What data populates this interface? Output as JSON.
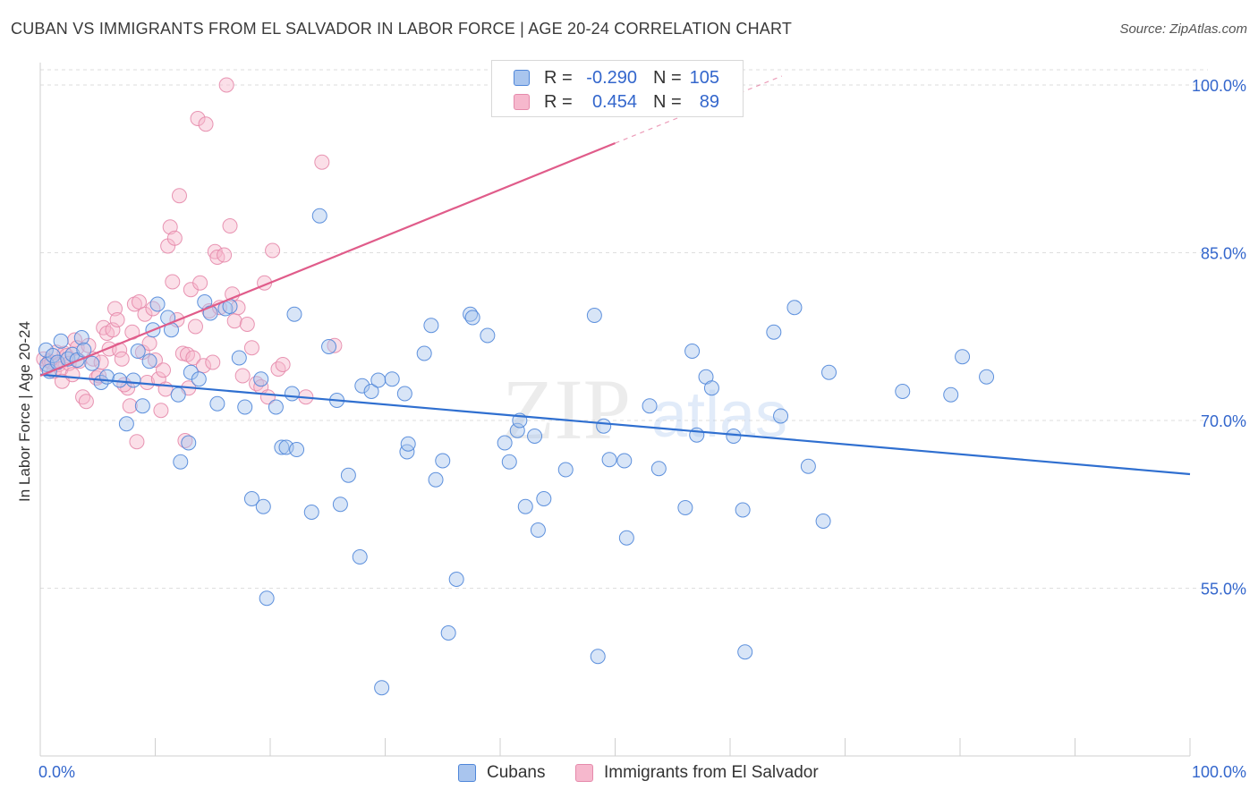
{
  "title": "CUBAN VS IMMIGRANTS FROM EL SALVADOR IN LABOR FORCE | AGE 20-24 CORRELATION CHART",
  "source": "Source: ZipAtlas.com",
  "watermark": {
    "zip": "ZIP",
    "atlas": "atlas"
  },
  "colors": {
    "cubans_fill": "#a9c5ee",
    "cubans_stroke": "#4f86d9",
    "cubans_line": "#2f6fd0",
    "salvador_fill": "#f6b8cd",
    "salvador_stroke": "#e58aab",
    "salvador_line": "#e05c8a",
    "value_text": "#3366cc",
    "grid": "#dedede"
  },
  "legend_top": [
    {
      "r_label": "R =",
      "r_value": "-0.290",
      "n_label": "N =",
      "n_value": "105"
    },
    {
      "r_label": "R =",
      "r_value": "0.454",
      "n_label": "N =",
      "n_value": "89"
    }
  ],
  "chart_data": {
    "type": "scatter",
    "title": "CUBAN VS IMMIGRANTS FROM EL SALVADOR IN LABOR FORCE | AGE 20-24 CORRELATION CHART",
    "xlabel": "",
    "ylabel": "In Labor Force | Age 20-24",
    "xlim": [
      0,
      100
    ],
    "ylim": [
      40,
      102
    ],
    "x_tick_labels": [
      "0.0%",
      "100.0%"
    ],
    "y_ticks": [
      55,
      70,
      85,
      100
    ],
    "y_tick_labels": [
      "55.0%",
      "70.0%",
      "85.0%",
      "100.0%"
    ],
    "grid": true,
    "legend_position": "top-center",
    "series": [
      {
        "name": "Cubans",
        "r": -0.29,
        "n": 105,
        "trend": {
          "x0": 0,
          "y0": 74.1,
          "x1": 100,
          "y1": 65.2
        },
        "points": [
          [
            0.5,
            76.3
          ],
          [
            0.6,
            75.0
          ],
          [
            0.8,
            74.4
          ],
          [
            1.1,
            75.8
          ],
          [
            1.5,
            75.2
          ],
          [
            1.8,
            77.1
          ],
          [
            2.4,
            75.5
          ],
          [
            2.8,
            75.9
          ],
          [
            3.2,
            75.4
          ],
          [
            3.6,
            77.4
          ],
          [
            3.8,
            76.3
          ],
          [
            4.5,
            75.1
          ],
          [
            5.3,
            73.4
          ],
          [
            5.8,
            73.9
          ],
          [
            6.9,
            73.6
          ],
          [
            7.5,
            69.7
          ],
          [
            8.1,
            73.6
          ],
          [
            8.5,
            76.2
          ],
          [
            8.9,
            71.3
          ],
          [
            9.5,
            75.3
          ],
          [
            9.8,
            78.1
          ],
          [
            10.2,
            80.4
          ],
          [
            11.1,
            79.2
          ],
          [
            11.4,
            78.1
          ],
          [
            12.0,
            72.3
          ],
          [
            12.2,
            66.3
          ],
          [
            12.9,
            68.0
          ],
          [
            13.1,
            74.3
          ],
          [
            13.8,
            73.7
          ],
          [
            14.3,
            80.6
          ],
          [
            14.8,
            79.6
          ],
          [
            15.4,
            71.5
          ],
          [
            16.1,
            80.0
          ],
          [
            16.5,
            80.2
          ],
          [
            17.3,
            75.6
          ],
          [
            17.8,
            71.2
          ],
          [
            18.4,
            63.0
          ],
          [
            19.2,
            73.7
          ],
          [
            19.4,
            62.3
          ],
          [
            19.7,
            54.1
          ],
          [
            20.5,
            71.2
          ],
          [
            21.0,
            67.6
          ],
          [
            21.4,
            67.6
          ],
          [
            21.9,
            72.4
          ],
          [
            22.1,
            79.5
          ],
          [
            23.6,
            61.8
          ],
          [
            24.3,
            88.3
          ],
          [
            25.1,
            76.6
          ],
          [
            25.8,
            71.8
          ],
          [
            26.1,
            62.5
          ],
          [
            26.8,
            65.1
          ],
          [
            27.8,
            57.8
          ],
          [
            28.0,
            73.1
          ],
          [
            28.8,
            72.6
          ],
          [
            29.4,
            73.6
          ],
          [
            29.7,
            46.1
          ],
          [
            30.6,
            73.7
          ],
          [
            31.7,
            72.4
          ],
          [
            31.9,
            67.2
          ],
          [
            32.0,
            67.9
          ],
          [
            33.4,
            76.0
          ],
          [
            34.0,
            78.5
          ],
          [
            34.4,
            64.7
          ],
          [
            35.0,
            66.4
          ],
          [
            35.5,
            51.0
          ],
          [
            36.2,
            55.8
          ],
          [
            37.4,
            79.5
          ],
          [
            37.6,
            79.2
          ],
          [
            38.9,
            77.6
          ],
          [
            40.4,
            68.0
          ],
          [
            40.8,
            66.3
          ],
          [
            41.5,
            69.1
          ],
          [
            41.7,
            70.0
          ],
          [
            42.2,
            62.3
          ],
          [
            43.0,
            68.6
          ],
          [
            43.3,
            60.2
          ],
          [
            43.8,
            63.0
          ],
          [
            45.7,
            65.6
          ],
          [
            48.2,
            79.4
          ],
          [
            48.5,
            48.9
          ],
          [
            49.0,
            69.5
          ],
          [
            49.5,
            66.5
          ],
          [
            50.8,
            66.4
          ],
          [
            51.0,
            59.5
          ],
          [
            53.0,
            71.3
          ],
          [
            53.8,
            65.7
          ],
          [
            56.1,
            62.2
          ],
          [
            56.7,
            76.2
          ],
          [
            57.1,
            68.7
          ],
          [
            57.9,
            73.9
          ],
          [
            58.4,
            72.9
          ],
          [
            60.3,
            68.6
          ],
          [
            61.1,
            62.0
          ],
          [
            61.3,
            49.3
          ],
          [
            63.8,
            77.9
          ],
          [
            64.4,
            70.4
          ],
          [
            65.6,
            80.1
          ],
          [
            66.8,
            65.9
          ],
          [
            68.1,
            61.0
          ],
          [
            68.6,
            74.3
          ],
          [
            75.0,
            72.6
          ],
          [
            79.2,
            72.3
          ],
          [
            80.2,
            75.7
          ],
          [
            82.3,
            73.9
          ],
          [
            22.3,
            67.4
          ]
        ]
      },
      {
        "name": "Immigrants from El Salvador",
        "r": 0.454,
        "n": 89,
        "trend": {
          "x0": 0,
          "y0": 74.0,
          "x1": 50,
          "y1": 94.8
        },
        "trend_extension": {
          "x0": 50,
          "y0": 94.8,
          "x1": 64.5,
          "y1": 100.8
        },
        "points": [
          [
            0.3,
            75.5
          ],
          [
            0.6,
            74.8
          ],
          [
            0.8,
            75.3
          ],
          [
            1.0,
            75.2
          ],
          [
            1.2,
            74.4
          ],
          [
            1.4,
            76.1
          ],
          [
            1.6,
            75.0
          ],
          [
            1.8,
            74.6
          ],
          [
            1.9,
            73.5
          ],
          [
            2.1,
            76.0
          ],
          [
            2.3,
            75.8
          ],
          [
            2.5,
            75.1
          ],
          [
            2.8,
            74.1
          ],
          [
            3.0,
            77.2
          ],
          [
            3.2,
            76.5
          ],
          [
            3.4,
            75.3
          ],
          [
            3.7,
            72.1
          ],
          [
            4.0,
            71.7
          ],
          [
            4.2,
            76.7
          ],
          [
            4.6,
            75.5
          ],
          [
            4.9,
            73.8
          ],
          [
            5.3,
            75.2
          ],
          [
            5.5,
            78.3
          ],
          [
            5.8,
            77.8
          ],
          [
            6.0,
            76.4
          ],
          [
            6.3,
            78.1
          ],
          [
            6.5,
            80.0
          ],
          [
            6.7,
            79.0
          ],
          [
            6.9,
            76.3
          ],
          [
            7.1,
            75.5
          ],
          [
            7.6,
            72.9
          ],
          [
            7.8,
            71.3
          ],
          [
            8.0,
            77.9
          ],
          [
            8.2,
            80.4
          ],
          [
            8.4,
            68.1
          ],
          [
            8.6,
            80.6
          ],
          [
            8.9,
            76.1
          ],
          [
            9.1,
            79.5
          ],
          [
            9.3,
            73.4
          ],
          [
            9.5,
            76.9
          ],
          [
            9.8,
            80.0
          ],
          [
            10.0,
            75.4
          ],
          [
            10.3,
            73.7
          ],
          [
            10.5,
            70.9
          ],
          [
            10.7,
            74.5
          ],
          [
            10.9,
            72.8
          ],
          [
            11.1,
            85.6
          ],
          [
            11.3,
            87.3
          ],
          [
            11.5,
            82.4
          ],
          [
            11.7,
            86.3
          ],
          [
            11.9,
            79.0
          ],
          [
            12.1,
            90.1
          ],
          [
            12.4,
            76.0
          ],
          [
            12.6,
            68.2
          ],
          [
            12.8,
            75.9
          ],
          [
            13.1,
            81.7
          ],
          [
            13.3,
            75.6
          ],
          [
            13.5,
            78.4
          ],
          [
            13.7,
            97.0
          ],
          [
            13.9,
            82.3
          ],
          [
            14.2,
            74.9
          ],
          [
            14.4,
            96.5
          ],
          [
            14.7,
            79.8
          ],
          [
            15.2,
            85.1
          ],
          [
            15.4,
            84.6
          ],
          [
            15.6,
            80.1
          ],
          [
            16.0,
            84.8
          ],
          [
            16.2,
            100.0
          ],
          [
            16.5,
            87.4
          ],
          [
            16.7,
            81.3
          ],
          [
            16.9,
            78.9
          ],
          [
            17.2,
            80.1
          ],
          [
            17.6,
            74.0
          ],
          [
            18.0,
            78.6
          ],
          [
            18.4,
            76.5
          ],
          [
            18.8,
            73.3
          ],
          [
            19.2,
            73.0
          ],
          [
            19.5,
            82.3
          ],
          [
            19.8,
            72.1
          ],
          [
            20.2,
            85.2
          ],
          [
            20.7,
            74.6
          ],
          [
            21.1,
            75.0
          ],
          [
            23.1,
            72.1
          ],
          [
            24.5,
            93.1
          ],
          [
            25.6,
            76.7
          ],
          [
            12.9,
            72.9
          ],
          [
            15.0,
            75.2
          ],
          [
            7.3,
            73.2
          ],
          [
            5.1,
            74.0
          ]
        ]
      }
    ]
  }
}
